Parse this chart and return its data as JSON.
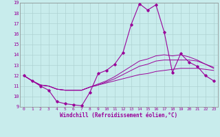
{
  "xlabel": "Windchill (Refroidissement éolien,°C)",
  "bg_color": "#c8ecec",
  "line_color": "#990099",
  "xlim_min": -0.5,
  "xlim_max": 23.5,
  "ylim_min": 9,
  "ylim_max": 19,
  "xticks": [
    0,
    1,
    2,
    3,
    4,
    5,
    6,
    7,
    8,
    9,
    10,
    11,
    12,
    13,
    14,
    15,
    16,
    17,
    18,
    19,
    20,
    21,
    22,
    23
  ],
  "yticks": [
    9,
    10,
    11,
    12,
    13,
    14,
    15,
    16,
    17,
    18,
    19
  ],
  "main_series": [
    12.0,
    11.5,
    11.0,
    10.6,
    9.5,
    9.3,
    9.2,
    9.1,
    10.4,
    12.2,
    12.5,
    13.1,
    14.2,
    16.9,
    18.9,
    18.3,
    18.8,
    16.2,
    12.3,
    14.1,
    13.3,
    12.9,
    12.0,
    11.5
  ],
  "smooth_series": [
    [
      12.0,
      11.5,
      11.1,
      11.0,
      10.7,
      10.6,
      10.6,
      10.6,
      10.9,
      11.1,
      11.3,
      11.5,
      11.7,
      11.9,
      12.1,
      12.2,
      12.4,
      12.5,
      12.6,
      12.7,
      12.7,
      12.7,
      12.6,
      12.5
    ],
    [
      12.0,
      11.5,
      11.1,
      11.0,
      10.7,
      10.6,
      10.6,
      10.6,
      10.9,
      11.1,
      11.4,
      11.7,
      12.1,
      12.5,
      12.9,
      13.1,
      13.4,
      13.5,
      13.5,
      13.5,
      13.5,
      13.4,
      13.1,
      12.8
    ],
    [
      12.0,
      11.5,
      11.1,
      11.0,
      10.7,
      10.6,
      10.6,
      10.6,
      10.9,
      11.2,
      11.5,
      11.9,
      12.4,
      12.9,
      13.4,
      13.6,
      13.9,
      14.0,
      13.9,
      14.0,
      13.8,
      13.5,
      13.1,
      12.7
    ]
  ]
}
